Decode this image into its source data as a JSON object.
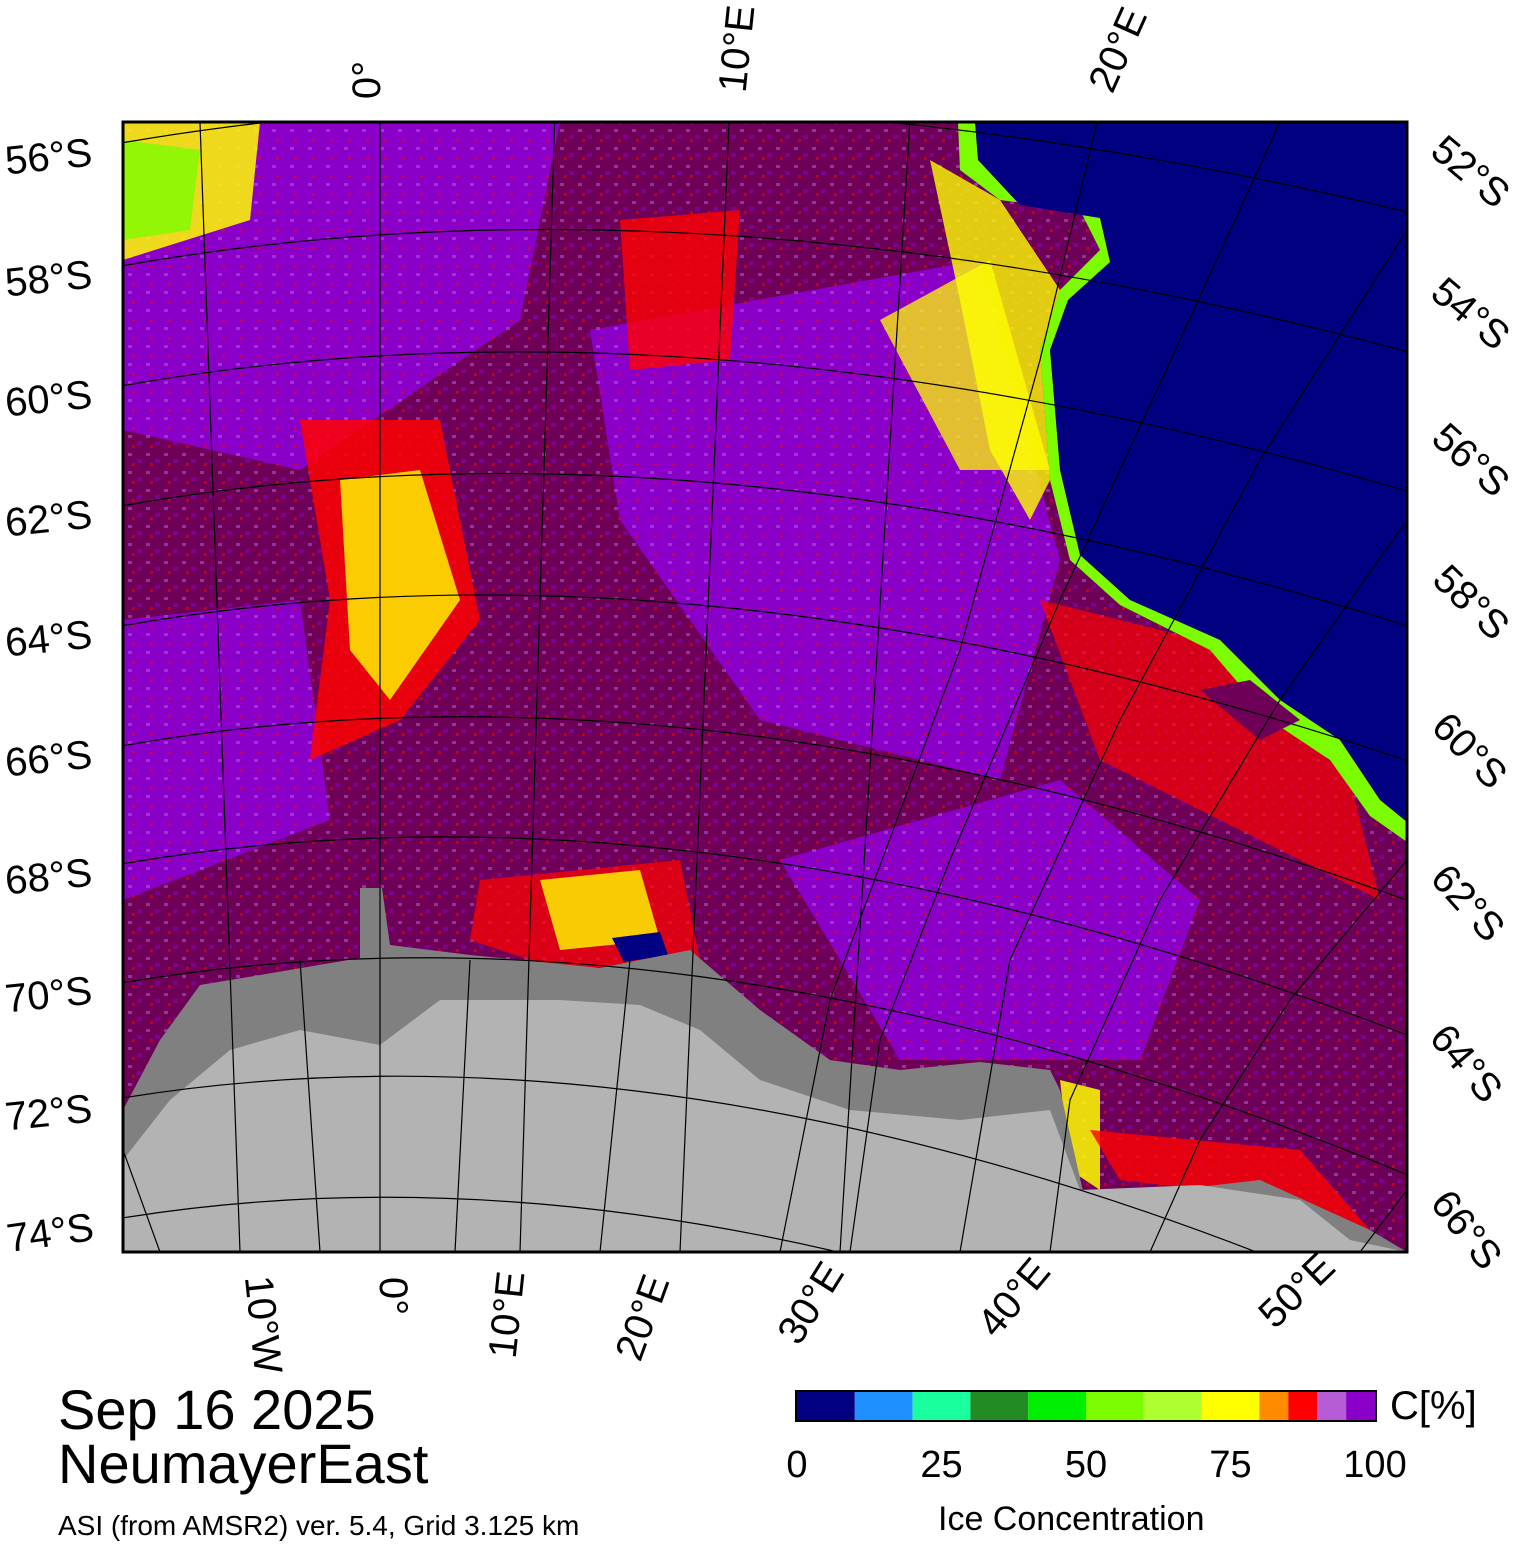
{
  "title": {
    "date": "Sep 16 2025",
    "region": "NeumayerEast",
    "source": "ASI (from AMSR2) ver. 5.4,  Grid 3.125 km"
  },
  "colorbar": {
    "unit": "C[%]",
    "caption": "Ice Concentration",
    "ticks": [
      "0",
      "25",
      "50",
      "75",
      "100"
    ],
    "bins": [
      {
        "range": [
          0,
          10
        ],
        "color": "#000080"
      },
      {
        "range": [
          10,
          20
        ],
        "color": "#1e90ff"
      },
      {
        "range": [
          20,
          30
        ],
        "color": "#1aff9e"
      },
      {
        "range": [
          30,
          40
        ],
        "color": "#228b22"
      },
      {
        "range": [
          40,
          50
        ],
        "color": "#00ee00"
      },
      {
        "range": [
          50,
          60
        ],
        "color": "#7cfc00"
      },
      {
        "range": [
          60,
          70
        ],
        "color": "#adff2f"
      },
      {
        "range": [
          70,
          80
        ],
        "color": "#ffff00"
      },
      {
        "range": [
          80,
          85
        ],
        "color": "#ff8c00"
      },
      {
        "range": [
          85,
          90
        ],
        "color": "#ff0000"
      },
      {
        "range": [
          90,
          95
        ],
        "color": "#b55cd6"
      },
      {
        "range": [
          95,
          100
        ],
        "color": "#8a00c8"
      }
    ]
  },
  "map": {
    "colors": {
      "open_water": "#000080",
      "ice_100": "#6e0057",
      "ice_high": "#8a00c8",
      "ice_mid": "#b55cd6",
      "land": "#b3b3b3",
      "ice_shelf": "#808080"
    },
    "left_lat_labels": [
      "56°S",
      "58°S",
      "60°S",
      "62°S",
      "64°S",
      "66°S",
      "68°S",
      "70°S",
      "72°S",
      "74°S"
    ],
    "right_lat_labels": [
      "52°S",
      "54°S",
      "56°S",
      "58°S",
      "60°S",
      "62°S",
      "64°S",
      "66°S"
    ],
    "top_lon_labels": [
      "0°",
      "10°E",
      "20°E"
    ],
    "bottom_lon_labels": [
      "10°W",
      "0°",
      "10°E",
      "20°E",
      "30°E",
      "40°E",
      "50°E"
    ]
  }
}
